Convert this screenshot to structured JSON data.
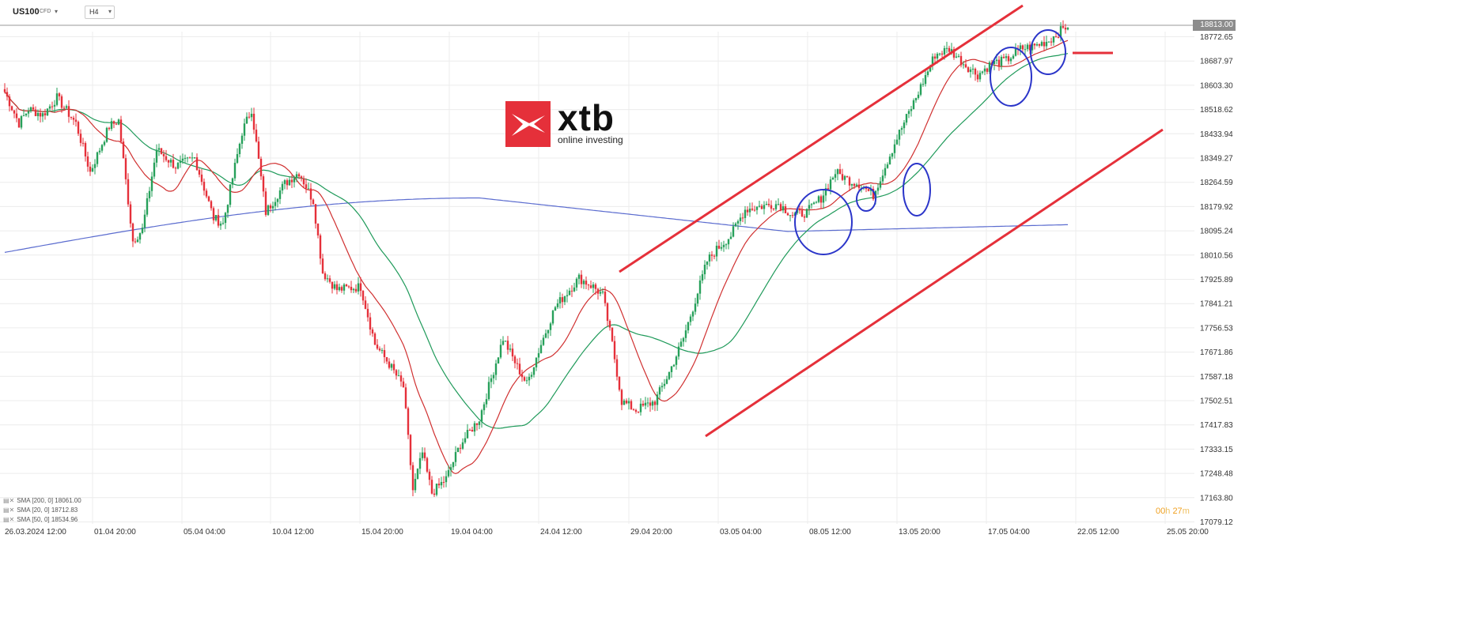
{
  "header": {
    "symbol": "US100",
    "symbol_type": "CFD",
    "timeframe": "H4"
  },
  "logo": {
    "name": "xtb",
    "tagline": "online investing"
  },
  "current_price": "18813.00",
  "timer": {
    "hours": "00",
    "hours_unit": "h",
    "minutes": "27",
    "minutes_unit": "m"
  },
  "legend": [
    {
      "label": "SMA [200, 0] 18061.00",
      "color": "#5b6ccf"
    },
    {
      "label": "SMA [20, 0] 18712.83",
      "color": "#d03030"
    },
    {
      "label": "SMA [50, 0] 18534.96",
      "color": "#1f9a5a"
    }
  ],
  "colors": {
    "up": "#26a05a",
    "down": "#e5303a",
    "sma200": "#5b6ccf",
    "sma20": "#d03030",
    "sma50": "#1f9a5a",
    "channel": "#e5303a",
    "marker": "#2b35c9"
  },
  "icons": {
    "symbol_dropdown": "chevron-down-icon",
    "timeframe_dropdown": "chevron-down-icon",
    "legend_settings": "settings-icon",
    "legend_close": "close-icon"
  },
  "chart_data": {
    "type": "candlestick",
    "title": "",
    "xlabel": "",
    "ylabel": "",
    "grid": true,
    "ylim": [
      17079.12,
      18857.34
    ],
    "y_ticks": [
      "18772.65",
      "18687.97",
      "18603.30",
      "18518.62",
      "18433.94",
      "18349.27",
      "18264.59",
      "18179.92",
      "18095.24",
      "18010.56",
      "17925.89",
      "17841.21",
      "17756.53",
      "17671.86",
      "17587.18",
      "17502.51",
      "17417.83",
      "17333.15",
      "17248.48",
      "17163.80",
      "17079.12"
    ],
    "x_ticks": [
      "26.03.2024 12:00",
      "01.04 20:00",
      "05.04 04:00",
      "10.04 12:00",
      "15.04 20:00",
      "19.04 04:00",
      "24.04 12:00",
      "29.04 20:00",
      "03.05 04:00",
      "08.05 12:00",
      "13.05 20:00",
      "17.05 04:00",
      "22.05 12:00",
      "25.05 20:00"
    ],
    "key_points": [
      {
        "label": "start",
        "value": 18580
      },
      {
        "label": "early-april high",
        "value": 18560
      },
      {
        "label": "05.04 low",
        "value": 18060
      },
      {
        "label": "10.04 high",
        "value": 18560
      },
      {
        "label": "19.04 low",
        "value": 17180
      },
      {
        "label": "29.04 high",
        "value": 17930
      },
      {
        "label": "02.05 low",
        "value": 17410
      },
      {
        "label": "latest close",
        "value": 18813
      }
    ],
    "series": [
      {
        "name": "SMA [200, 0]",
        "last": 18061.0
      },
      {
        "name": "SMA [20, 0]",
        "last": 18712.83
      },
      {
        "name": "SMA [50, 0]",
        "last": 18534.96
      }
    ]
  }
}
